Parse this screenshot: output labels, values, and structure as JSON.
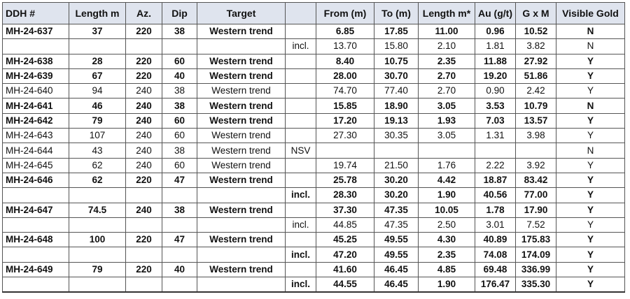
{
  "headers": [
    "DDH #",
    "Length m",
    "Az.",
    "Dip",
    "Target",
    "",
    "From (m)",
    "To (m)",
    "Length m*",
    "Au (g/t)",
    "G x M",
    "Visible Gold"
  ],
  "rows": [
    {
      "bold": true,
      "cells": [
        "MH-24-637",
        "37",
        "220",
        "38",
        "Western trend",
        "",
        "6.85",
        "17.85",
        "11.00",
        "0.96",
        "10.52",
        "N"
      ]
    },
    {
      "bold": false,
      "cells": [
        "",
        "",
        "",
        "",
        "",
        "incl.",
        "13.70",
        "15.80",
        "2.10",
        "1.81",
        "3.82",
        "N"
      ]
    },
    {
      "bold": true,
      "cells": [
        "MH-24-638",
        "28",
        "220",
        "60",
        "Western trend",
        "",
        "8.40",
        "10.75",
        "2.35",
        "11.88",
        "27.92",
        "Y"
      ]
    },
    {
      "bold": true,
      "cells": [
        "MH-24-639",
        "67",
        "220",
        "40",
        "Western trend",
        "",
        "28.00",
        "30.70",
        "2.70",
        "19.20",
        "51.86",
        "Y"
      ]
    },
    {
      "bold": false,
      "cells": [
        "MH-24-640",
        "94",
        "240",
        "38",
        "Western trend",
        "",
        "74.70",
        "77.40",
        "2.70",
        "0.90",
        "2.42",
        "Y"
      ]
    },
    {
      "bold": true,
      "cells": [
        "MH-24-641",
        "46",
        "240",
        "38",
        "Western trend",
        "",
        "15.85",
        "18.90",
        "3.05",
        "3.53",
        "10.79",
        "N"
      ]
    },
    {
      "bold": true,
      "cells": [
        "MH-24-642",
        "79",
        "240",
        "60",
        "Western trend",
        "",
        "17.20",
        "19.13",
        "1.93",
        "7.03",
        "13.57",
        "Y"
      ]
    },
    {
      "bold": false,
      "cells": [
        "MH-24-643",
        "107",
        "240",
        "60",
        "Western trend",
        "",
        "27.30",
        "30.35",
        "3.05",
        "1.31",
        "3.98",
        "Y"
      ]
    },
    {
      "bold": false,
      "cells": [
        "MH-24-644",
        "43",
        "240",
        "38",
        "Western trend",
        "NSV",
        "",
        "",
        "",
        "",
        "",
        "N"
      ]
    },
    {
      "bold": false,
      "cells": [
        "MH-24-645",
        "62",
        "240",
        "60",
        "Western trend",
        "",
        "19.74",
        "21.50",
        "1.76",
        "2.22",
        "3.92",
        "Y"
      ]
    },
    {
      "bold": true,
      "cells": [
        "MH-24-646",
        "62",
        "220",
        "47",
        "Western trend",
        "",
        "25.78",
        "30.20",
        "4.42",
        "18.87",
        "83.42",
        "Y"
      ]
    },
    {
      "bold": true,
      "cells": [
        "",
        "",
        "",
        "",
        "",
        "incl.",
        "28.30",
        "30.20",
        "1.90",
        "40.56",
        "77.00",
        "Y"
      ]
    },
    {
      "bold": true,
      "cells": [
        "MH-24-647",
        "74.5",
        "240",
        "38",
        "Western trend",
        "",
        "37.30",
        "47.35",
        "10.05",
        "1.78",
        "17.90",
        "Y"
      ]
    },
    {
      "bold": false,
      "cells": [
        "",
        "",
        "",
        "",
        "",
        "incl.",
        "44.85",
        "47.35",
        "2.50",
        "3.01",
        "7.52",
        "Y"
      ]
    },
    {
      "bold": true,
      "cells": [
        "MH-24-648",
        "100",
        "220",
        "47",
        "Western trend",
        "",
        "45.25",
        "49.55",
        "4.30",
        "40.89",
        "175.83",
        "Y"
      ]
    },
    {
      "bold": true,
      "cells": [
        "",
        "",
        "",
        "",
        "",
        "incl.",
        "47.20",
        "49.55",
        "2.35",
        "74.08",
        "174.09",
        "Y"
      ]
    },
    {
      "bold": true,
      "cells": [
        "MH-24-649",
        "79",
        "220",
        "40",
        "Western trend",
        "",
        "41.60",
        "46.45",
        "4.85",
        "69.48",
        "336.99",
        "Y"
      ]
    },
    {
      "bold": true,
      "cells": [
        "",
        "",
        "",
        "",
        "",
        "incl.",
        "44.55",
        "46.45",
        "1.90",
        "176.47",
        "335.30",
        "Y"
      ]
    }
  ],
  "style": {
    "header_bg": "#dfe4ee",
    "border": "#555555"
  }
}
